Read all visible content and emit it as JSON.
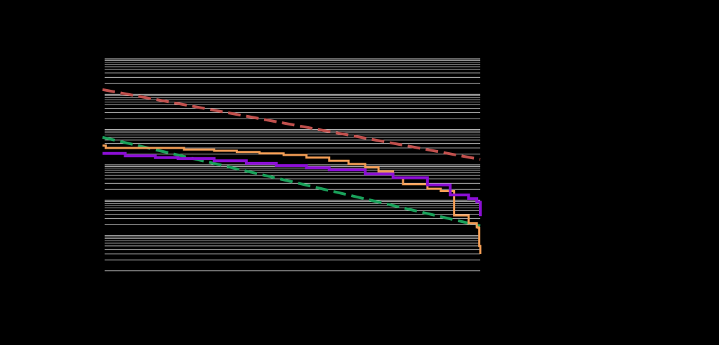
{
  "chart_data": {
    "type": "line",
    "scale": {
      "x": "log",
      "y": "log"
    },
    "grid": true,
    "legend": "none",
    "colors": {
      "background": "#000000",
      "grid": "#d9d9d9",
      "red_dashed": "#c0504d",
      "green_dashed": "#1aa05a",
      "orange": "#f29d55",
      "purple": "#8b0fd4"
    },
    "xlim": [
      1,
      100000
    ],
    "ylim": [
      1e-05,
      10
    ],
    "series": [
      {
        "style": "dashed",
        "color": "#c0504d",
        "x": [
          1,
          100000
        ],
        "y": [
          1.35,
          0.0142
        ]
      },
      {
        "style": "dashed",
        "color": "#1aa05a",
        "x": [
          1,
          100000
        ],
        "y": [
          0.06,
          0.000185
        ]
      },
      {
        "style": "step",
        "color": "#f29d55",
        "x": [
          1,
          1.1,
          1.5,
          2,
          5,
          12,
          30,
          60,
          120,
          250,
          500,
          1000,
          1800,
          3000,
          4500,
          7000,
          9500,
          10000,
          20000,
          30000,
          45000,
          70000,
          90000,
          95000,
          97000,
          100000
        ],
        "y": [
          0.035,
          0.03,
          0.03,
          0.03,
          0.03,
          0.027,
          0.025,
          0.023,
          0.021,
          0.019,
          0.016,
          0.013,
          0.0105,
          0.0085,
          0.0065,
          0.0042,
          0.0028,
          0.0028,
          0.0021,
          0.0018,
          0.00037,
          0.00022,
          0.00017,
          0.00016,
          5e-05,
          3e-05
        ]
      },
      {
        "style": "step",
        "color": "#8b0fd4",
        "x": [
          1,
          1.5,
          2,
          3,
          5,
          10,
          30,
          80,
          200,
          500,
          1000,
          3000,
          7000,
          20000,
          40000,
          70000,
          90000,
          100000,
          100000
        ],
        "y": [
          0.021,
          0.021,
          0.018,
          0.018,
          0.016,
          0.015,
          0.013,
          0.011,
          0.0095,
          0.0082,
          0.0072,
          0.0055,
          0.0043,
          0.0027,
          0.0014,
          0.0011,
          0.0009,
          0.00095,
          0.00035
        ]
      }
    ]
  }
}
